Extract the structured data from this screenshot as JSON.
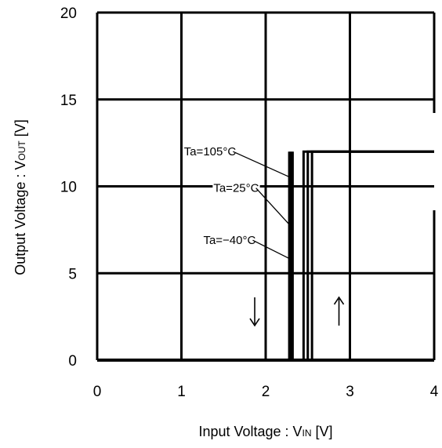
{
  "chart_data": {
    "type": "line",
    "title": "",
    "xlabel": "Input Voltage : V",
    "xlabel_sub": "IN",
    "xlabel_unit": " [V]",
    "ylabel": "Output Voltage : V",
    "ylabel_sub": "OUT",
    "ylabel_unit": " [V]",
    "xlim": [
      0,
      4
    ],
    "ylim": [
      0,
      20
    ],
    "x_ticks": [
      0,
      1,
      2,
      3,
      4
    ],
    "x_tick_labels": [
      "0",
      "1",
      "2",
      "3",
      "4"
    ],
    "y_ticks": [
      0,
      5,
      10,
      15,
      20
    ],
    "y_tick_labels": [
      "0",
      "5",
      "10",
      "15",
      "20"
    ],
    "grid": true,
    "series": [
      {
        "name": "Ta=105°C",
        "rising_threshold": 2.45,
        "falling_threshold": 2.28,
        "v_high": 12,
        "v_low": 0
      },
      {
        "name": "Ta=25°C",
        "rising_threshold": 2.5,
        "falling_threshold": 2.3,
        "v_high": 12,
        "v_low": 0
      },
      {
        "name": "Ta=−40°C",
        "rising_threshold": 2.55,
        "falling_threshold": 2.32,
        "v_high": 12,
        "v_low": 0
      }
    ],
    "annotations": [
      {
        "text": "Ta=105°C",
        "label_x": 1.03,
        "label_y": 12.0,
        "arrow_x": 2.3,
        "arrow_y": 10.5
      },
      {
        "text": "Ta=25°C",
        "label_x": 1.38,
        "label_y": 9.9,
        "arrow_x": 2.3,
        "arrow_y": 7.7
      },
      {
        "text": "Ta=−40°C",
        "label_x": 1.26,
        "label_y": 6.9,
        "arrow_x": 2.3,
        "arrow_y": 5.8
      }
    ],
    "direction_arrows": [
      {
        "symbol": "↓",
        "x": 1.87,
        "y": 2.8
      },
      {
        "symbol": "↑",
        "x": 2.87,
        "y": 2.8
      }
    ]
  }
}
